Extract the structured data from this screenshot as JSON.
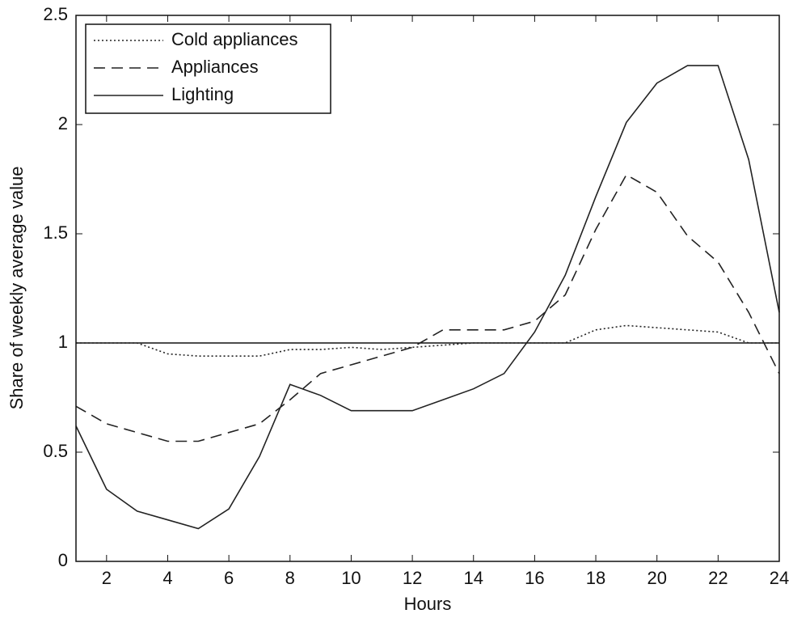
{
  "chart_data": {
    "type": "line",
    "xlabel": "Hours",
    "ylabel": "Share of weekly average value",
    "x": [
      1,
      2,
      3,
      4,
      5,
      6,
      7,
      8,
      9,
      10,
      11,
      12,
      13,
      14,
      15,
      16,
      17,
      18,
      19,
      20,
      21,
      22,
      23,
      24
    ],
    "series": [
      {
        "name": "Cold appliances",
        "color": "#222222",
        "dash": "dotted",
        "values": [
          1.0,
          1.0,
          1.0,
          0.95,
          0.94,
          0.94,
          0.94,
          0.97,
          0.97,
          0.98,
          0.97,
          0.98,
          0.99,
          1.0,
          1.0,
          1.0,
          1.0,
          1.06,
          1.08,
          1.07,
          1.06,
          1.05,
          1.0,
          1.0
        ]
      },
      {
        "name": "Appliances",
        "color": "#222222",
        "dash": "dashed",
        "values": [
          0.71,
          0.63,
          0.59,
          0.55,
          0.55,
          0.59,
          0.63,
          0.74,
          0.86,
          0.9,
          0.94,
          0.98,
          1.06,
          1.06,
          1.06,
          1.1,
          1.22,
          1.52,
          1.77,
          1.69,
          1.49,
          1.37,
          1.14,
          0.86
        ]
      },
      {
        "name": "Lighting",
        "color": "#222222",
        "dash": "solid",
        "values": [
          0.62,
          0.33,
          0.23,
          0.19,
          0.15,
          0.24,
          0.48,
          0.81,
          0.76,
          0.69,
          0.69,
          0.69,
          0.74,
          0.79,
          0.86,
          1.05,
          1.31,
          1.67,
          2.01,
          2.19,
          2.27,
          2.27,
          1.84,
          1.14
        ]
      }
    ],
    "reference_line": 1,
    "xlim": [
      1,
      24
    ],
    "xticks": [
      2,
      4,
      6,
      8,
      10,
      12,
      14,
      16,
      18,
      20,
      22,
      24
    ],
    "ylim": [
      0,
      2.5
    ],
    "yticks": [
      0,
      0.5,
      1,
      1.5,
      2,
      2.5
    ],
    "grid": false,
    "legend": "top-left"
  }
}
